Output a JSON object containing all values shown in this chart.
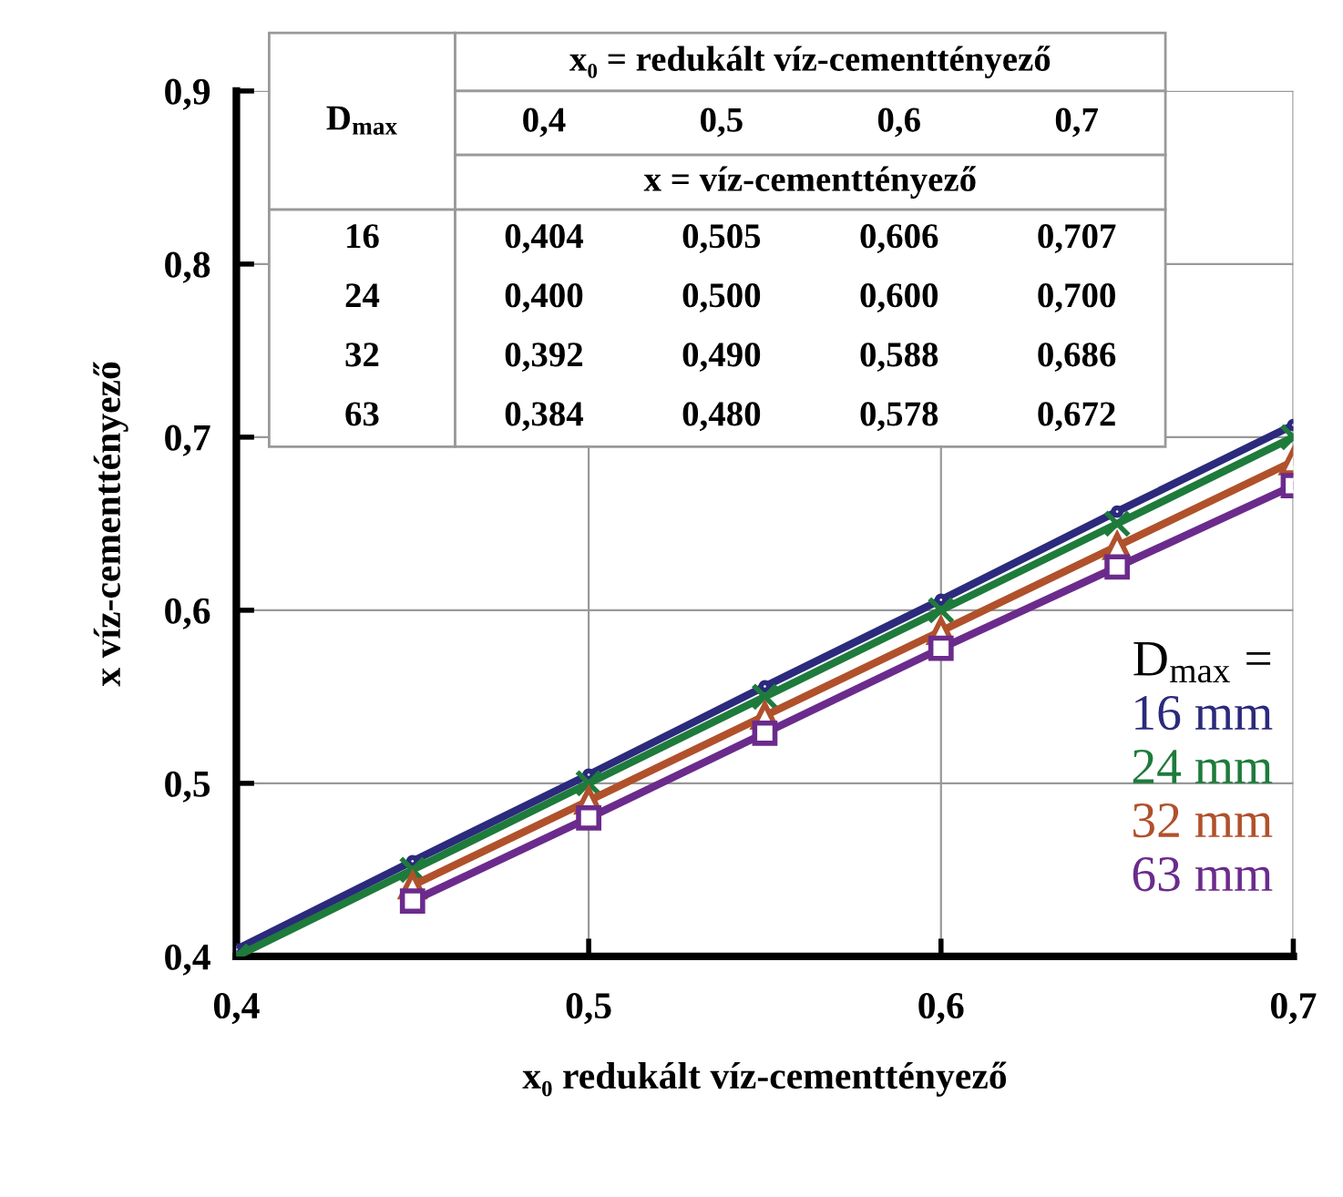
{
  "chart_data": {
    "type": "line",
    "xlabel": "x₀ redukált víz-cementtényező",
    "ylabel": "x víz-cementtényező",
    "legend_title": "D$_{max}$ =",
    "x": [
      0.4,
      0.45,
      0.5,
      0.55,
      0.6,
      0.65,
      0.7
    ],
    "series": [
      {
        "name": "16 mm",
        "color": "#2b2a7c",
        "marker": "circle",
        "values": [
          0.404,
          0.455,
          0.505,
          0.556,
          0.606,
          0.657,
          0.707
        ]
      },
      {
        "name": "24 mm",
        "color": "#1e7b3c",
        "marker": "cross",
        "values": [
          0.4,
          0.45,
          0.5,
          0.55,
          0.6,
          0.65,
          0.7
        ]
      },
      {
        "name": "32 mm",
        "color": "#b0512c",
        "marker": "triangle",
        "values": [
          null,
          0.441,
          0.49,
          0.539,
          0.588,
          0.637,
          0.686
        ]
      },
      {
        "name": "63 mm",
        "color": "#6b2b8c",
        "marker": "square",
        "values": [
          null,
          0.432,
          0.48,
          0.529,
          0.578,
          0.625,
          0.672
        ]
      }
    ],
    "xlim": [
      0.4,
      0.7
    ],
    "xticks": [
      {
        "value": 0.4,
        "label": "0,4"
      },
      {
        "value": 0.5,
        "label": "0,5"
      },
      {
        "value": 0.6,
        "label": "0,6"
      },
      {
        "value": 0.7,
        "label": "0,7"
      }
    ],
    "ylim": [
      0.4,
      0.9
    ],
    "yticks": [
      {
        "value": 0.4,
        "label": "0,4"
      },
      {
        "value": 0.5,
        "label": "0,5"
      },
      {
        "value": 0.6,
        "label": "0,6"
      },
      {
        "value": 0.7,
        "label": "0,7"
      },
      {
        "value": 0.8,
        "label": "0,8"
      },
      {
        "value": 0.9,
        "label": "0,9"
      }
    ],
    "grid": true,
    "legend": "right",
    "annotations": [
      "x₀ = redukált víz-cementtényező",
      "D$_{max}$",
      "0,4",
      "0,5",
      "0,6",
      "0,7",
      "x = víz-cementtényező",
      "16",
      "0,404",
      "0,505",
      "0,606",
      "0,707",
      "24",
      "0,400",
      "0,500",
      "0,600",
      "0,700",
      "32",
      "0,392",
      "0,490",
      "0,588",
      "0,686",
      "63",
      "0,384",
      "0,480",
      "0,578",
      "0,672"
    ]
  }
}
